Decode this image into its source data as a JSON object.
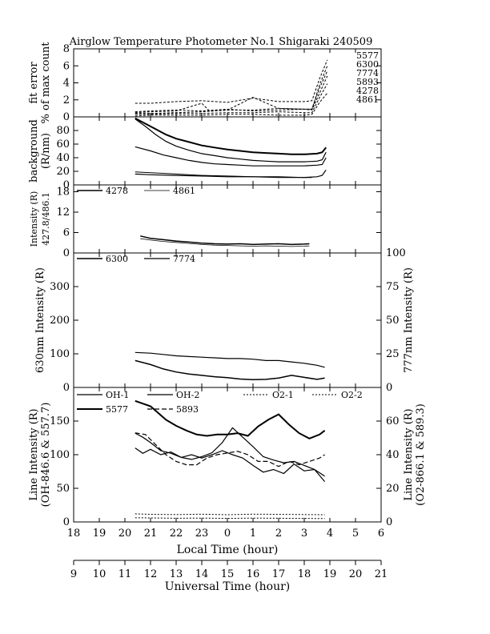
{
  "chart_data": {
    "type": "line",
    "title": "Airglow Temperature Photometer No.1  Shigaraki  240509",
    "x_local_label": "Local Time (hour)",
    "x_local_ticks": [
      "18",
      "19",
      "20",
      "21",
      "22",
      "23",
      "0",
      "1",
      "2",
      "3",
      "4",
      "5",
      "6"
    ],
    "x_ut_label": "Universal Time (hour)",
    "x_ut_ticks": [
      "9",
      "10",
      "11",
      "12",
      "13",
      "14",
      "15",
      "16",
      "17",
      "18",
      "19",
      "20",
      "21"
    ],
    "x_range": [
      18,
      30
    ],
    "panels": [
      {
        "ylabel": [
          "fit error",
          "% of max count"
        ],
        "ylim": [
          0,
          8
        ],
        "yticks": [
          "0",
          "2",
          "4",
          "6",
          "8"
        ],
        "side_labels": [
          "5577",
          "6300",
          "7774",
          "5893",
          "4278",
          "4861"
        ],
        "series": [
          {
            "name": "5577",
            "dash": "3,2",
            "x": [
              20.4,
              21,
              22,
              23,
              24,
              25,
              26,
              27,
              27.3,
              27.6,
              27.9
            ],
            "y": [
              1.6,
              1.6,
              1.8,
              1.9,
              1.7,
              2.2,
              1.8,
              1.8,
              1.9,
              4.5,
              6.7
            ]
          },
          {
            "name": "6300",
            "dash": "3,2",
            "x": [
              20.4,
              21,
              22,
              23,
              24,
              25,
              26,
              27,
              27.3,
              27.6,
              27.9
            ],
            "y": [
              0.6,
              0.7,
              0.8,
              0.7,
              0.9,
              0.7,
              0.8,
              0.9,
              0.9,
              3.8,
              6.0
            ]
          },
          {
            "name": "7774",
            "dash": "3,2",
            "x": [
              20.4,
              21,
              22,
              23,
              23.3,
              24,
              25,
              26,
              27,
              27.3,
              27.6,
              27.9
            ],
            "y": [
              0.5,
              0.6,
              0.7,
              1.6,
              0.7,
              0.8,
              2.3,
              1.0,
              0.9,
              0.9,
              3.4,
              5.4
            ]
          },
          {
            "name": "5893",
            "dash": "3,2",
            "x": [
              20.4,
              21,
              22,
              23,
              24,
              25,
              26,
              27,
              27.3,
              27.6,
              27.9
            ],
            "y": [
              0.4,
              0.4,
              0.5,
              0.6,
              0.8,
              0.8,
              1.0,
              0.9,
              0.8,
              2.8,
              4.8
            ]
          },
          {
            "name": "4278",
            "dash": "3,2",
            "x": [
              20.4,
              21,
              22,
              23,
              24,
              25,
              26,
              27,
              27.3,
              27.6,
              27.9
            ],
            "y": [
              0.3,
              0.3,
              0.4,
              0.4,
              0.5,
              0.5,
              0.6,
              0.5,
              0.5,
              2.3,
              3.9
            ]
          },
          {
            "name": "4861",
            "dash": "3,2",
            "x": [
              20.4,
              21,
              22,
              23,
              24,
              25,
              26,
              27,
              27.3,
              27.6,
              27.9
            ],
            "y": [
              0.1,
              0.2,
              0.2,
              0.2,
              0.3,
              0.3,
              0.2,
              0.2,
              0.3,
              1.7,
              2.8
            ]
          }
        ]
      },
      {
        "ylabel": [
          "background",
          "(R/nm)"
        ],
        "ylim": [
          0,
          100
        ],
        "yticks": [
          "0",
          "20",
          "40",
          "60",
          "80"
        ],
        "series": [
          {
            "name": "",
            "width": 2,
            "x": [
              20.4,
              20.8,
              21.2,
              21.6,
              22,
              22.5,
              23,
              23.5,
              24,
              24.5,
              25,
              25.5,
              26,
              26.5,
              27,
              27.5,
              27.7,
              27.85
            ],
            "y": [
              98,
              90,
              82,
              74,
              68,
              63,
              58,
              55,
              52,
              50,
              48,
              47,
              46,
              45,
              45,
              46,
              48,
              55
            ]
          },
          {
            "name": "",
            "width": 1.2,
            "x": [
              20.4,
              20.8,
              21.2,
              21.6,
              22,
              22.5,
              23,
              23.5,
              24,
              24.5,
              25,
              25.5,
              26,
              26.5,
              27,
              27.5,
              27.7,
              27.85
            ],
            "y": [
              97,
              86,
              74,
              64,
              57,
              51,
              46,
              43,
              40,
              38,
              36,
              35,
              34,
              34,
              34,
              35,
              37,
              48
            ]
          },
          {
            "name": "",
            "width": 1.2,
            "x": [
              20.4,
              21,
              21.5,
              22,
              22.5,
              23,
              23.5,
              24,
              24.5,
              25,
              25.5,
              26,
              26.5,
              27,
              27.5,
              27.7,
              27.85
            ],
            "y": [
              56,
              50,
              44,
              40,
              36,
              33,
              31,
              30,
              29,
              28,
              28,
              28,
              28,
              28,
              29,
              30,
              40
            ]
          },
          {
            "name": "",
            "width": 1.2,
            "x": [
              20.4,
              21,
              22,
              23,
              24,
              25,
              26,
              27,
              27.5,
              27.7,
              27.85
            ],
            "y": [
              16,
              15,
              14,
              13,
              12,
              12,
              11,
              11,
              12,
              14,
              22
            ]
          },
          {
            "name": "",
            "width": 1,
            "x": [
              20.4,
              21,
              22,
              23,
              24,
              25,
              26,
              27,
              27.3
            ],
            "y": [
              19,
              18,
              16,
              14,
              13,
              12,
              12,
              11,
              11
            ]
          }
        ]
      },
      {
        "ylabel": [
          "Intensity (R)",
          "427.8/486.1"
        ],
        "ylim": [
          0,
          20
        ],
        "yticks": [
          "0",
          "6",
          "12",
          "18"
        ],
        "legend": [
          "4278",
          "4861"
        ],
        "series": [
          {
            "name": "4278",
            "width": 1.5,
            "x": [
              20.6,
              21,
              21.5,
              22,
              22.5,
              23,
              23.5,
              24,
              24.5,
              25,
              25.5,
              26,
              26.5,
              27,
              27.2
            ],
            "y": [
              5.0,
              4.3,
              3.9,
              3.5,
              3.2,
              2.9,
              2.7,
              2.6,
              2.7,
              2.5,
              2.6,
              2.7,
              2.5,
              2.6,
              2.7
            ]
          },
          {
            "name": "4861",
            "width": 0.8,
            "x": [
              20.6,
              21,
              21.5,
              22,
              22.5,
              23,
              23.5,
              24,
              24.5,
              25,
              25.5,
              26,
              26.5,
              27,
              27.2
            ],
            "y": [
              4.2,
              3.8,
              3.4,
              3.1,
              2.8,
              2.5,
              2.3,
              2.2,
              2.1,
              2.0,
              2.1,
              2.0,
              1.9,
              2.0,
              2.1
            ]
          }
        ]
      },
      {
        "ylabel": [
          "630nm Intensity (R)"
        ],
        "ylabel_right": "777nm Intensity (R)",
        "ylim": [
          0,
          400
        ],
        "yticks": [
          "0",
          "100",
          "200",
          "300"
        ],
        "ylim_right": [
          0,
          100
        ],
        "yticks_right": [
          "0",
          "25",
          "50",
          "75",
          "100"
        ],
        "legend": [
          "6300",
          "7774"
        ],
        "series": [
          {
            "name": "6300",
            "width": 1.5,
            "x": [
              20.4,
              21,
              21.5,
              22,
              22.5,
              23,
              23.5,
              24,
              24.5,
              25,
              25.5,
              26,
              26.5,
              27,
              27.5,
              27.8
            ],
            "y": [
              80,
              68,
              55,
              46,
              40,
              36,
              32,
              29,
              25,
              23,
              24,
              28,
              36,
              30,
              24,
              28
            ]
          },
          {
            "name": "7774",
            "axis": "right",
            "width": 1.2,
            "x": [
              20.4,
              21,
              21.5,
              22,
              22.5,
              23,
              23.5,
              24,
              24.5,
              25,
              25.5,
              26,
              26.5,
              27,
              27.5,
              27.8
            ],
            "y": [
              26,
              25.5,
              24.5,
              23.5,
              23,
              22.5,
              22,
              21.5,
              21.5,
              21,
              20,
              20,
              19,
              18,
              16.5,
              15
            ]
          }
        ]
      },
      {
        "ylabel": [
          "Line Intensity (R)",
          "(OH-846.6 & 557.7)"
        ],
        "ylabel_right": [
          "Line Intensity (R)",
          "(O2-866.1 & 589.3)"
        ],
        "ylim": [
          0,
          200
        ],
        "yticks": [
          "0",
          "50",
          "100",
          "150"
        ],
        "ylim_right": [
          0,
          80
        ],
        "yticks_right": [
          "0",
          "20",
          "40",
          "60"
        ],
        "legend": [
          "OH-1",
          "OH-2",
          "O2-1",
          "O2-2",
          "5577",
          "5893"
        ],
        "series": [
          {
            "name": "OH-1",
            "width": 1.2,
            "x": [
              20.4,
              20.7,
              21,
              21.4,
              21.8,
              22.2,
              22.6,
              23,
              23.4,
              23.8,
              24.2,
              24.6,
              25,
              25.4,
              25.8,
              26.2,
              26.6,
              27,
              27.4,
              27.8
            ],
            "y": [
              110,
              102,
              108,
              100,
              104,
              96,
              100,
              95,
              100,
              106,
              100,
              95,
              84,
              74,
              78,
              72,
              86,
              76,
              78,
              68
            ]
          },
          {
            "name": "OH-2",
            "width": 1.2,
            "x": [
              20.4,
              20.7,
              21,
              21.4,
              21.8,
              22.2,
              22.6,
              23,
              23.4,
              23.8,
              24.2,
              24.6,
              25,
              25.4,
              25.8,
              26.2,
              26.6,
              27,
              27.4,
              27.8
            ],
            "y": [
              132,
              126,
              118,
              106,
              102,
              96,
              93,
              97,
              103,
              118,
              140,
              126,
              112,
              97,
              92,
              88,
              90,
              84,
              78,
              60
            ]
          },
          {
            "name": "O2-1",
            "dash": "2,2",
            "axis": "right",
            "width": 1,
            "x": [
              20.4,
              21,
              22,
              23,
              24,
              25,
              26,
              27,
              27.8
            ],
            "y": [
              4.8,
              4.5,
              4.4,
              4.6,
              4.3,
              4.6,
              4.5,
              4.4,
              4.3
            ]
          },
          {
            "name": "O2-2",
            "dash": "2,2",
            "axis": "right",
            "width": 1,
            "x": [
              20.4,
              21,
              22,
              23,
              24,
              25,
              26,
              27,
              27.8
            ],
            "y": [
              2.5,
              2.4,
              2.2,
              2.3,
              2.1,
              2.3,
              2.2,
              2.1,
              2.0
            ]
          },
          {
            "name": "5577",
            "width": 2,
            "x": [
              20.4,
              20.7,
              21,
              21.3,
              21.6,
              22,
              22.4,
              22.8,
              23.2,
              23.6,
              24,
              24.4,
              24.8,
              25.2,
              25.6,
              26,
              26.4,
              26.8,
              27.2,
              27.6,
              27.8
            ],
            "y": [
              180,
              176,
              172,
              162,
              152,
              143,
              136,
              130,
              128,
              130,
              130,
              132,
              128,
              142,
              152,
              160,
              145,
              132,
              124,
              130,
              136
            ]
          },
          {
            "name": "5893",
            "dash": "6,3",
            "axis": "right",
            "width": 1.2,
            "x": [
              20.4,
              20.8,
              21.2,
              21.6,
              22,
              22.4,
              22.8,
              23.2,
              23.6,
              24,
              24.4,
              24.8,
              25.2,
              25.6,
              26,
              26.4,
              26.8,
              27.2,
              27.6,
              27.8
            ],
            "y": [
              53,
              52,
              46,
              40,
              36,
              34,
              34,
              38,
              40,
              41,
              42,
              40,
              36,
              36,
              33,
              36,
              34,
              36,
              38,
              40
            ]
          }
        ]
      }
    ]
  }
}
